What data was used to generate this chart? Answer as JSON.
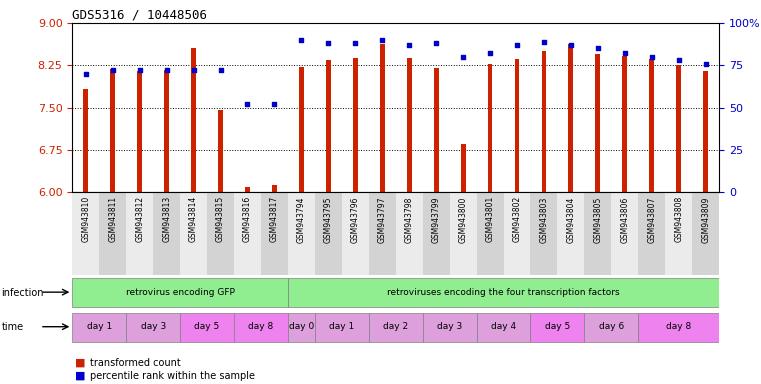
{
  "title": "GDS5316 / 10448506",
  "samples": [
    "GSM943810",
    "GSM943811",
    "GSM943812",
    "GSM943813",
    "GSM943814",
    "GSM943815",
    "GSM943816",
    "GSM943817",
    "GSM943794",
    "GSM943795",
    "GSM943796",
    "GSM943797",
    "GSM943798",
    "GSM943799",
    "GSM943800",
    "GSM943801",
    "GSM943802",
    "GSM943803",
    "GSM943804",
    "GSM943805",
    "GSM943806",
    "GSM943807",
    "GSM943808",
    "GSM943809"
  ],
  "red_values": [
    7.82,
    8.18,
    8.14,
    8.16,
    8.55,
    7.45,
    6.08,
    6.12,
    8.22,
    8.35,
    8.38,
    8.62,
    8.38,
    8.21,
    6.85,
    8.27,
    8.37,
    8.5,
    8.62,
    8.45,
    8.42,
    8.37,
    8.25,
    8.15
  ],
  "blue_values": [
    70,
    72,
    72,
    72,
    72,
    72,
    52,
    52,
    90,
    88,
    88,
    90,
    87,
    88,
    80,
    82,
    87,
    89,
    87,
    85,
    82,
    80,
    78,
    76
  ],
  "ylim_left": [
    6,
    9
  ],
  "ylim_right": [
    0,
    100
  ],
  "yticks_left": [
    6,
    6.75,
    7.5,
    8.25,
    9
  ],
  "yticks_right": [
    0,
    25,
    50,
    75,
    100
  ],
  "infection_labels": [
    {
      "text": "retrovirus encoding GFP",
      "start": 0,
      "end": 8,
      "color": "#90EE90"
    },
    {
      "text": "retroviruses encoding the four transcription factors",
      "start": 8,
      "end": 24,
      "color": "#90EE90"
    }
  ],
  "time_labels": [
    {
      "text": "day 1",
      "start": 0,
      "end": 2,
      "color": "#DDA0DD"
    },
    {
      "text": "day 3",
      "start": 2,
      "end": 4,
      "color": "#DDA0DD"
    },
    {
      "text": "day 5",
      "start": 4,
      "end": 6,
      "color": "#EE82EE"
    },
    {
      "text": "day 8",
      "start": 6,
      "end": 8,
      "color": "#EE82EE"
    },
    {
      "text": "day 0",
      "start": 8,
      "end": 9,
      "color": "#DDA0DD"
    },
    {
      "text": "day 1",
      "start": 9,
      "end": 11,
      "color": "#DDA0DD"
    },
    {
      "text": "day 2",
      "start": 11,
      "end": 13,
      "color": "#DDA0DD"
    },
    {
      "text": "day 3",
      "start": 13,
      "end": 15,
      "color": "#DDA0DD"
    },
    {
      "text": "day 4",
      "start": 15,
      "end": 17,
      "color": "#DDA0DD"
    },
    {
      "text": "day 5",
      "start": 17,
      "end": 19,
      "color": "#EE82EE"
    },
    {
      "text": "day 6",
      "start": 19,
      "end": 21,
      "color": "#DDA0DD"
    },
    {
      "text": "day 8",
      "start": 21,
      "end": 24,
      "color": "#EE82EE"
    }
  ],
  "bar_color": "#CC2200",
  "dot_color": "#0000CC",
  "bg_color": "#FFFFFF",
  "grid_color": "#000000",
  "left_axis_color": "#CC2200",
  "right_axis_color": "#0000CC",
  "bar_width": 0.18
}
